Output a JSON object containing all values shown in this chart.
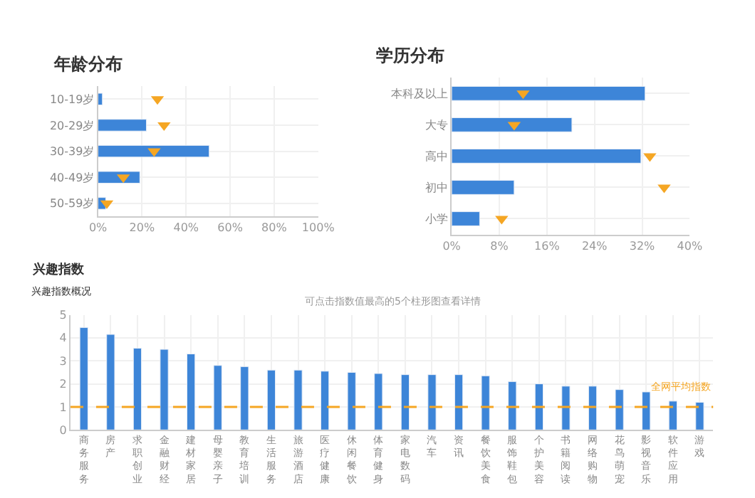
{
  "chart_data": [
    {
      "type": "bar",
      "title": "年龄分布",
      "orientation": "horizontal",
      "categories": [
        "10-19岁",
        "20-29岁",
        "30-39岁",
        "40-49岁",
        "50-59岁"
      ],
      "series": [
        {
          "color": "#3d85d8",
          "values": [
            2,
            22,
            50.5,
            19,
            3.5
          ]
        },
        {
          "type": "scatter",
          "marker": "triangle",
          "color": "#f5a623",
          "values": [
            27,
            30,
            25.5,
            11.5,
            4
          ]
        }
      ],
      "xlim": [
        0,
        100
      ],
      "xticks": [
        {
          "value": 0,
          "label": "0%"
        },
        {
          "value": 20,
          "label": "20%"
        },
        {
          "value": 40,
          "label": "40%"
        },
        {
          "value": 60,
          "label": "60%"
        },
        {
          "value": 80,
          "label": "80%"
        },
        {
          "value": 100,
          "label": "100%"
        }
      ],
      "grid": true
    },
    {
      "type": "bar",
      "title": "学历分布",
      "orientation": "horizontal",
      "categories": [
        "本科及以上",
        "大专",
        "高中",
        "初中",
        "小学"
      ],
      "series": [
        {
          "color": "#3d85d8",
          "values": [
            32.5,
            20.2,
            31.8,
            10.5,
            4.7
          ]
        },
        {
          "type": "scatter",
          "marker": "triangle",
          "color": "#f5a623",
          "values": [
            12,
            10.5,
            33.3,
            35.7,
            8.4
          ]
        }
      ],
      "xlim": [
        0,
        40
      ],
      "xticks": [
        {
          "value": 0,
          "label": "0%"
        },
        {
          "value": 8,
          "label": "8%"
        },
        {
          "value": 16,
          "label": "16%"
        },
        {
          "value": 24,
          "label": "24%"
        },
        {
          "value": 32,
          "label": "32%"
        },
        {
          "value": 40,
          "label": "40%"
        }
      ],
      "grid": true
    },
    {
      "type": "bar",
      "title": "兴趣指数",
      "subtitle": "兴趣指数概况",
      "annotations": [
        "可点击指数值最高的5个柱形图查看详情"
      ],
      "categories": [
        "商务服务",
        "房产",
        "求职创业",
        "金融财经",
        "建材家居",
        "母婴亲子",
        "教育培训",
        "生活服务",
        "旅游酒店",
        "医疗健康",
        "休闲餐饮",
        "体育健身",
        "家电数码",
        "汽车",
        "资讯",
        "餐饮美食",
        "服饰鞋包",
        "个护美容",
        "书籍阅读",
        "网络购物",
        "花鸟萌宠",
        "影视音乐",
        "软件应用",
        "游戏"
      ],
      "values": [
        4.45,
        4.15,
        3.55,
        3.5,
        3.3,
        2.8,
        2.75,
        2.6,
        2.6,
        2.55,
        2.5,
        2.45,
        2.4,
        2.4,
        2.4,
        2.35,
        2.1,
        2,
        1.9,
        1.9,
        1.75,
        1.65,
        1.25,
        1.2
      ],
      "color": "#3d85d8",
      "ylim": [
        0,
        5
      ],
      "yticks": [
        0,
        1,
        2,
        3,
        4,
        5
      ],
      "grid": true,
      "ref_lines": [
        {
          "axis": "y",
          "value": 1,
          "label": "全网平均指数",
          "color": "#f5a623",
          "line_style": "dashed"
        }
      ]
    }
  ]
}
